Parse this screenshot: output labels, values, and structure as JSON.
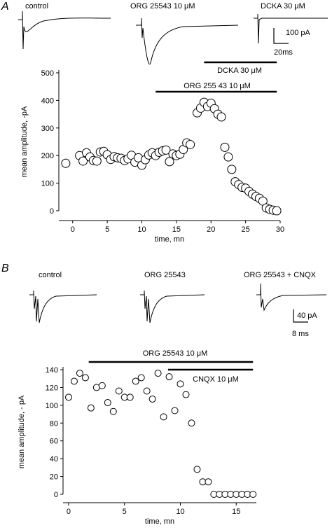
{
  "panel_a": {
    "letter": "A",
    "traces": [
      {
        "label": "control",
        "shape": "control"
      },
      {
        "label": "ORG 25543 10 μM",
        "shape": "org"
      },
      {
        "label": "DCKA 30 μM",
        "shape": "dcka"
      }
    ],
    "scale": {
      "current": "100 pA",
      "time": "20ms"
    },
    "chart_data": {
      "type": "scatter",
      "title": "",
      "xlabel": "time, mn",
      "ylabel": "mean amplitude, -pA",
      "xlim": [
        -2,
        30
      ],
      "ylim": [
        0,
        500
      ],
      "xticks": [
        0,
        5,
        10,
        15,
        20,
        25,
        30
      ],
      "yticks": [
        0,
        100,
        200,
        300,
        400,
        500
      ],
      "grid": false,
      "bars": [
        {
          "label": "DCKA 30 μM",
          "x_start": 19,
          "x_end": 29.5
        },
        {
          "label": "ORG 255 43 10 μM",
          "x_start": 12,
          "x_end": 29.5
        }
      ],
      "points": [
        [
          -1,
          172
        ],
        [
          1,
          200
        ],
        [
          1.5,
          180
        ],
        [
          2,
          210
        ],
        [
          2.5,
          195
        ],
        [
          3,
          182
        ],
        [
          3.5,
          180
        ],
        [
          4,
          213
        ],
        [
          4.5,
          215
        ],
        [
          5,
          203
        ],
        [
          5.5,
          186
        ],
        [
          6,
          196
        ],
        [
          6.5,
          192
        ],
        [
          7,
          190
        ],
        [
          7.5,
          182
        ],
        [
          8,
          188
        ],
        [
          8.5,
          201
        ],
        [
          9,
          176
        ],
        [
          9.5,
          192
        ],
        [
          10,
          165
        ],
        [
          10.5,
          185
        ],
        [
          11,
          202
        ],
        [
          11.5,
          210
        ],
        [
          12,
          200
        ],
        [
          12.5,
          212
        ],
        [
          13,
          217
        ],
        [
          13.5,
          220
        ],
        [
          14,
          178
        ],
        [
          14.5,
          206
        ],
        [
          15,
          200
        ],
        [
          15.5,
          205
        ],
        [
          16,
          222
        ],
        [
          16.5,
          246
        ],
        [
          17,
          240
        ],
        [
          18,
          355
        ],
        [
          18.5,
          372
        ],
        [
          19,
          393
        ],
        [
          19.5,
          378
        ],
        [
          20,
          390
        ],
        [
          20.5,
          370
        ],
        [
          21,
          350
        ],
        [
          21.5,
          340
        ],
        [
          22,
          230
        ],
        [
          22.5,
          195
        ],
        [
          23,
          150
        ],
        [
          23.5,
          105
        ],
        [
          24,
          95
        ],
        [
          24.5,
          85
        ],
        [
          25,
          82
        ],
        [
          25.5,
          70
        ],
        [
          26,
          60
        ],
        [
          26.5,
          52
        ],
        [
          27,
          45
        ],
        [
          27.5,
          35
        ],
        [
          28,
          10
        ],
        [
          28.5,
          5
        ],
        [
          29,
          2
        ],
        [
          29.5,
          0
        ]
      ]
    }
  },
  "panel_b": {
    "letter": "B",
    "traces": [
      {
        "label": "control",
        "shape": "double"
      },
      {
        "label": "ORG 25543",
        "shape": "double"
      },
      {
        "label": "ORG 25543 + CNQX",
        "shape": "single"
      }
    ],
    "scale": {
      "current": "40 pA",
      "time": "8 ms"
    },
    "chart_data": {
      "type": "scatter",
      "title": "",
      "xlabel": "time, mn",
      "ylabel": "mean amplitude, - pA",
      "xlim": [
        -0.5,
        16.8
      ],
      "ylim": [
        0,
        140
      ],
      "xticks": [
        0,
        5,
        10,
        15
      ],
      "yticks": [
        0,
        20,
        40,
        60,
        80,
        100,
        120,
        140
      ],
      "grid": false,
      "bars": [
        {
          "label": "ORG 25543 10 μM",
          "x_start": 1.8,
          "x_end": 16.5
        },
        {
          "label": "CNQX 10 μM",
          "x_start": 8.9,
          "x_end": 16.5
        }
      ],
      "points": [
        [
          0,
          109
        ],
        [
          0.5,
          127
        ],
        [
          1,
          136
        ],
        [
          1.5,
          131
        ],
        [
          2,
          97
        ],
        [
          2.5,
          120
        ],
        [
          3,
          122
        ],
        [
          3.5,
          103
        ],
        [
          4,
          93
        ],
        [
          4.5,
          116
        ],
        [
          5,
          109
        ],
        [
          5.5,
          109
        ],
        [
          6,
          127
        ],
        [
          6.5,
          131
        ],
        [
          7,
          116
        ],
        [
          7.5,
          107
        ],
        [
          8,
          136
        ],
        [
          8.5,
          87
        ],
        [
          9,
          132
        ],
        [
          9.5,
          94
        ],
        [
          10,
          124
        ],
        [
          10.5,
          112
        ],
        [
          11,
          80
        ],
        [
          11.5,
          28
        ],
        [
          12,
          14
        ],
        [
          12.5,
          14
        ],
        [
          13,
          0
        ],
        [
          13.5,
          0
        ],
        [
          14,
          0
        ],
        [
          14.5,
          0
        ],
        [
          15,
          0
        ],
        [
          15.5,
          0
        ],
        [
          16,
          0
        ],
        [
          16.5,
          0
        ]
      ]
    }
  }
}
